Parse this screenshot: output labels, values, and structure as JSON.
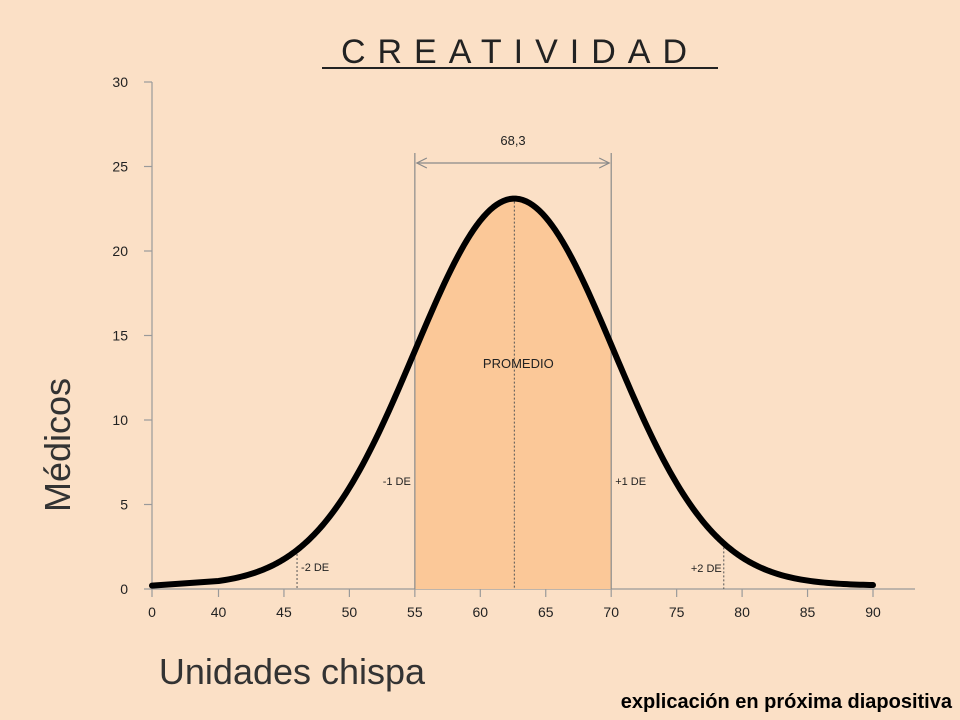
{
  "slide": {
    "title": "CREATIVIDAD",
    "footer_note": "explicación en próxima diapositiva"
  },
  "chart_data": {
    "type": "line",
    "title": "CREATIVIDAD",
    "xlabel": "Unidades chispa",
    "ylabel": "Médicos",
    "x_ticks": [
      "0",
      "40",
      "45",
      "50",
      "55",
      "60",
      "65",
      "70",
      "75",
      "80",
      "85",
      "90"
    ],
    "y_ticks": [
      "0",
      "5",
      "10",
      "15",
      "20",
      "25",
      "30"
    ],
    "ylim": [
      0,
      30
    ],
    "curve": {
      "mean": 62.6,
      "sd": 7.6,
      "peak": 23.1,
      "baseline": 0.2,
      "x_range": [
        40,
        90
      ]
    },
    "shaded_region": {
      "from": 55,
      "to": 70
    },
    "annotations": {
      "span_label": "68,3",
      "mean_label": "PROMEDIO",
      "minus1": {
        "label": "-1 DE",
        "x": 55
      },
      "plus1": {
        "label": "+1 DE",
        "x": 70
      },
      "minus2": {
        "label": "-2 DE",
        "x": 46
      },
      "plus2": {
        "label": "+2 DE",
        "x": 78.6
      }
    },
    "colors": {
      "background": "#fbe0c6",
      "shade": "#fbc898",
      "curve": "#000000",
      "axis": "#9a9a9a",
      "text": "#222222"
    }
  }
}
